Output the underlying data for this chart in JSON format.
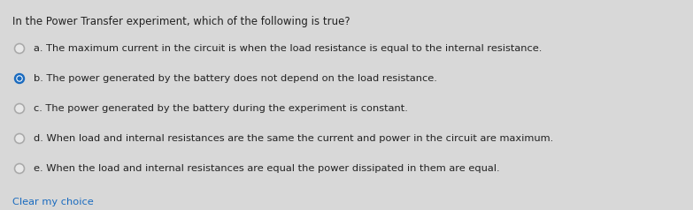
{
  "title": "In the Power Transfer experiment, which of the following is true?",
  "options": [
    {
      "label": "a.",
      "text": "The maximum current in the circuit is when the load resistance is equal to the internal resistance.",
      "selected": false
    },
    {
      "label": "b.",
      "text": "The power generated by the battery does not depend on the load resistance.",
      "selected": true
    },
    {
      "label": "c.",
      "text": "The power generated by the battery during the experiment is constant.",
      "selected": false
    },
    {
      "label": "d.",
      "text": "When load and internal resistances are the same the current and power in the circuit are maximum.",
      "selected": false
    },
    {
      "label": "e.",
      "text": "When the load and internal resistances are equal the power dissipated in them are equal.",
      "selected": false
    }
  ],
  "clear_label": "Clear my choice",
  "bg_color": "#d8d8d8",
  "title_fontsize": 8.5,
  "option_fontsize": 8.2,
  "clear_fontsize": 8.2,
  "title_color": "#222222",
  "option_color": "#222222",
  "clear_color": "#1a6bbf",
  "radio_empty_edge_color": "#aaaaaa",
  "radio_filled_color": "#1a6bbf",
  "radio_empty_fill": "#e8e8e8"
}
